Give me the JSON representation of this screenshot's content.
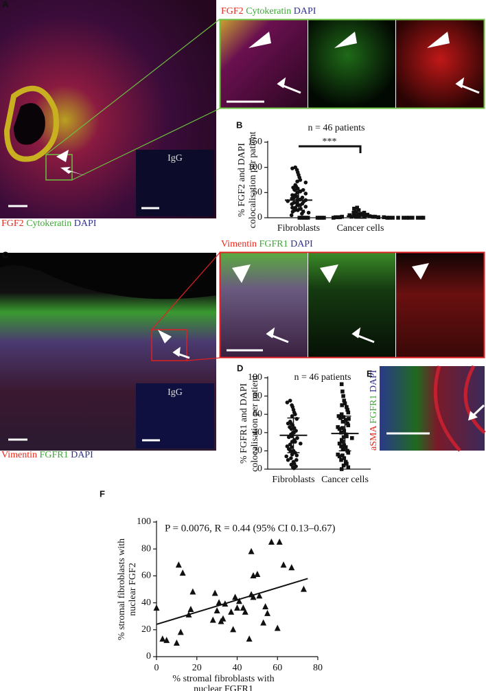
{
  "panels": {
    "A": {
      "letter": "A",
      "stains": [
        "FGF2",
        "Cytokeratin",
        "DAPI"
      ],
      "inset": "IgG"
    },
    "A_zoom": {
      "stains": [
        "FGF2",
        "Cytokeratin",
        "DAPI"
      ]
    },
    "C": {
      "letter": "C",
      "stains": [
        "Vimentin",
        "FGFR1",
        "DAPI"
      ],
      "inset": "IgG"
    },
    "C_zoom": {
      "stains": [
        "Vimentin",
        "FGFR1",
        "DAPI"
      ]
    },
    "E": {
      "letter": "E",
      "stains": [
        "aSMA",
        "FGFR1",
        "DAPI"
      ]
    },
    "stain_colors": [
      "#e8291c",
      "#3aa832",
      "#2e3192"
    ]
  },
  "chart_data": [
    {
      "type": "dotplot",
      "letter": "B",
      "title": "n = 46 patients",
      "ylabel": [
        "% FGF2 and DAPI",
        "colocalisation per patient"
      ],
      "categories": [
        "Fibroblasts",
        "Cancer cells"
      ],
      "markers": [
        "circle",
        "square"
      ],
      "values": [
        [
          100,
          98,
          95,
          90,
          85,
          80,
          75,
          72,
          70,
          65,
          62,
          60,
          58,
          55,
          55,
          52,
          50,
          48,
          45,
          45,
          42,
          40,
          40,
          38,
          36,
          35,
          35,
          33,
          32,
          30,
          30,
          28,
          27,
          25,
          25,
          22,
          20,
          20,
          18,
          15,
          15,
          12,
          12,
          10,
          8,
          5
        ],
        [
          20,
          18,
          15,
          12,
          10,
          10,
          8,
          7,
          6,
          5,
          5,
          4,
          4,
          3,
          3,
          3,
          2,
          2,
          2,
          2,
          1,
          1,
          1,
          1,
          1,
          0,
          0,
          0,
          0,
          0,
          0,
          0,
          0,
          0,
          0,
          0,
          0,
          0,
          0,
          0,
          0,
          0,
          0,
          0,
          0,
          0
        ]
      ],
      "means": [
        35,
        3
      ],
      "errors": [
        20,
        4
      ],
      "annotation": "***",
      "ylim": [
        0,
        150
      ],
      "yticks": [
        0,
        50,
        100,
        150
      ],
      "color": "#111111"
    },
    {
      "type": "dotplot",
      "letter": "D",
      "title": "n = 46 patients",
      "ylabel": [
        "% FGFR1 and DAPI",
        "colocalisation per patient"
      ],
      "categories": [
        "Fibroblasts",
        "Cancer cells"
      ],
      "markers": [
        "circle",
        "square"
      ],
      "values": [
        [
          75,
          73,
          70,
          68,
          65,
          62,
          60,
          58,
          55,
          52,
          50,
          50,
          48,
          46,
          45,
          44,
          42,
          40,
          40,
          38,
          36,
          35,
          34,
          32,
          30,
          30,
          28,
          27,
          25,
          24,
          22,
          20,
          20,
          18,
          16,
          15,
          14,
          12,
          10,
          10,
          8,
          6,
          5,
          3,
          2,
          1
        ],
        [
          93,
          85,
          80,
          75,
          72,
          70,
          68,
          65,
          62,
          60,
          58,
          57,
          56,
          55,
          54,
          52,
          50,
          48,
          46,
          45,
          44,
          42,
          40,
          38,
          36,
          35,
          34,
          32,
          30,
          28,
          26,
          25,
          24,
          22,
          20,
          18,
          16,
          15,
          14,
          12,
          10,
          8,
          6,
          4,
          2,
          0
        ]
      ],
      "means": [
        37,
        39
      ],
      "errors": [
        19,
        19
      ],
      "ylim": [
        0,
        100
      ],
      "yticks": [
        0,
        20,
        40,
        60,
        80,
        100
      ],
      "color": "#111111"
    },
    {
      "type": "scatter",
      "letter": "F",
      "annotation": "P = 0.0076, R = 0.44 (95% CI 0.13–0.67)",
      "xlabel": [
        "% stromal fibroblasts with",
        "nuclear FGFR1"
      ],
      "ylabel": [
        "% stromal fibroblasts with",
        "nuclear FGF2"
      ],
      "x": [
        0,
        3,
        5,
        10,
        11,
        12,
        13,
        16,
        17,
        18,
        28,
        29,
        30,
        31,
        32,
        33,
        34,
        37,
        38,
        39,
        40,
        41,
        43,
        44,
        46,
        47,
        47,
        48,
        50,
        51,
        53,
        54,
        55,
        57,
        60,
        61,
        63,
        67,
        73,
        48
      ],
      "y": [
        36,
        13,
        12,
        10,
        68,
        18,
        62,
        31,
        35,
        48,
        27,
        47,
        34,
        40,
        26,
        28,
        39,
        33,
        20,
        44,
        36,
        41,
        36,
        33,
        13,
        46,
        78,
        60,
        61,
        45,
        25,
        37,
        32,
        85,
        21,
        85,
        68,
        66,
        50,
        44
      ],
      "fit_line": {
        "x": [
          0,
          75
        ],
        "y": [
          24,
          58
        ]
      },
      "marker": "triangle",
      "color": "#111111",
      "xlim": [
        0,
        80
      ],
      "xticks": [
        0,
        20,
        40,
        60,
        80
      ],
      "ylim": [
        0,
        100
      ],
      "yticks": [
        0,
        20,
        40,
        60,
        80,
        100
      ]
    }
  ]
}
